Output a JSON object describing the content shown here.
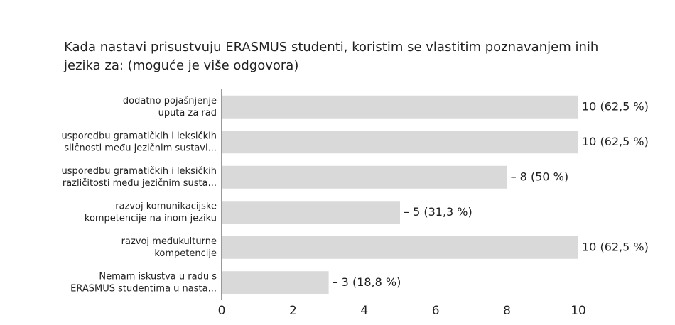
{
  "chart_data": {
    "type": "barh",
    "title": "Kada nastavi prisustvuju ERASMUS studenti, koristim se vlastitim poznavanjem inih jezika za: (moguće je više odgovora)",
    "categories": [
      [
        "dodatno pojašnjenje",
        "uputa za rad"
      ],
      [
        "usporedbu gramatičkih i leksičkih",
        "sličnosti među jezičnim sustavi..."
      ],
      [
        "usporedbu gramatičkih i leksičkih",
        "različitosti među jezičnim susta..."
      ],
      [
        "razvoj komunikacijske",
        "kompetencije na inom jeziku"
      ],
      [
        "razvoj međukulturne",
        "kompetencije"
      ],
      [
        "Nemam iskustva u radu s",
        "ERASMUS studentima u nasta..."
      ]
    ],
    "values": [
      10,
      10,
      8,
      5,
      10,
      3
    ],
    "value_labels": [
      "10 (62,5 %)",
      "10 (62,5 %)",
      "– 8 (50 %)",
      "– 5 (31,3 %)",
      "10 (62,5 %)",
      "– 3 (18,8 %)"
    ],
    "color": "#d9d9d9",
    "xlim": [
      0,
      10
    ],
    "xticks": [
      0,
      2,
      4,
      6,
      8,
      10
    ],
    "grid": false
  }
}
